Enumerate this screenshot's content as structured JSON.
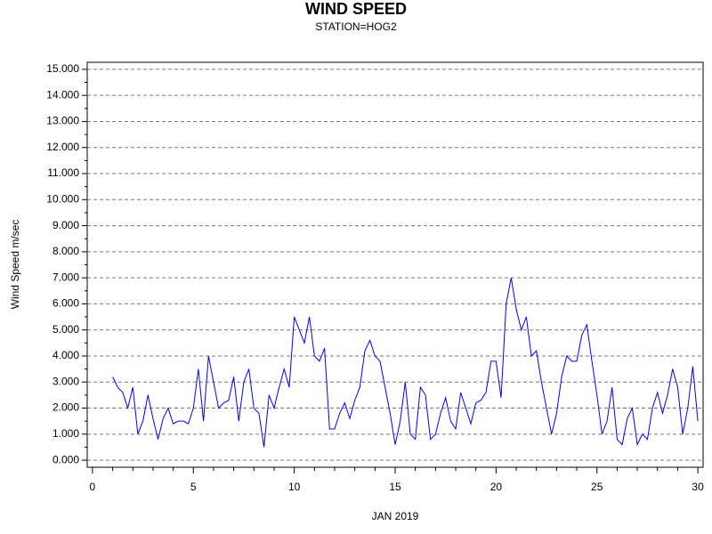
{
  "chart_data": {
    "type": "line",
    "title": "WIND SPEED",
    "subtitle": "STATION=HOG2",
    "x_label": "JAN 2019",
    "y_label": "Wind Speed m/sec",
    "xlim": [
      -0.26,
      30.26
    ],
    "xticks": [
      0,
      5,
      10,
      15,
      20,
      25,
      30
    ],
    "xminorticks": [
      1,
      2,
      3,
      4,
      6,
      7,
      8,
      9,
      11,
      12,
      13,
      14,
      16,
      17,
      18,
      19,
      21,
      22,
      23,
      24,
      26,
      27,
      28,
      29
    ],
    "ylim": [
      -0.27,
      15.27
    ],
    "yticks": [
      {
        "value": 0,
        "label": "0.000"
      },
      {
        "value": 1,
        "label": "1.000"
      },
      {
        "value": 2,
        "label": "2.000"
      },
      {
        "value": 3,
        "label": "3.000"
      },
      {
        "value": 4,
        "label": "4.000"
      },
      {
        "value": 5,
        "label": "5.000"
      },
      {
        "value": 6,
        "label": "6.000"
      },
      {
        "value": 7,
        "label": "7.000"
      },
      {
        "value": 8,
        "label": "8.000"
      },
      {
        "value": 9,
        "label": "9.000"
      },
      {
        "value": 10,
        "label": "10.000"
      },
      {
        "value": 11,
        "label": "11.000"
      },
      {
        "value": 12,
        "label": "12.000"
      },
      {
        "value": 13,
        "label": "13.000"
      },
      {
        "value": 14,
        "label": "14.000"
      },
      {
        "value": 15,
        "label": "15.000"
      }
    ],
    "yminorticks": [
      0.5,
      1.5,
      2.5,
      3.5,
      4.5,
      5.5,
      6.5,
      7.5,
      8.5,
      9.5,
      10.5,
      11.5,
      12.5,
      13.5,
      14.5
    ],
    "grid": true,
    "x": [
      1,
      1.25,
      1.5,
      1.75,
      2,
      2.25,
      2.5,
      2.75,
      3,
      3.25,
      3.5,
      3.75,
      4,
      4.25,
      4.5,
      4.75,
      5,
      5.25,
      5.5,
      5.75,
      6,
      6.25,
      6.5,
      6.75,
      7,
      7.25,
      7.5,
      7.75,
      8,
      8.25,
      8.5,
      8.75,
      9,
      9.25,
      9.5,
      9.75,
      10,
      10.25,
      10.5,
      10.75,
      11,
      11.25,
      11.5,
      11.75,
      12,
      12.25,
      12.5,
      12.75,
      13,
      13.25,
      13.5,
      13.75,
      14,
      14.25,
      14.5,
      14.75,
      15,
      15.25,
      15.5,
      15.75,
      16,
      16.25,
      16.5,
      16.75,
      17,
      17.25,
      17.5,
      17.75,
      18,
      18.25,
      18.5,
      18.75,
      19,
      19.25,
      19.5,
      19.75,
      20,
      20.25,
      20.5,
      20.75,
      21,
      21.25,
      21.5,
      21.75,
      22,
      22.25,
      22.5,
      22.75,
      23,
      23.25,
      23.5,
      23.75,
      24,
      24.25,
      24.5,
      24.75,
      25,
      25.25,
      25.5,
      25.75,
      26,
      26.25,
      26.5,
      26.75,
      27,
      27.25,
      27.5,
      27.75,
      28,
      28.25,
      28.5,
      28.75,
      29,
      29.25,
      29.5,
      29.75,
      30
    ],
    "series": [
      {
        "name": "Wind Speed",
        "color": "#0000ff",
        "values": [
          3.2,
          2.8,
          2.6,
          2.0,
          2.8,
          1.0,
          1.5,
          2.5,
          1.6,
          0.8,
          1.6,
          2.0,
          1.4,
          1.5,
          1.5,
          1.4,
          2.0,
          3.5,
          1.5,
          4.0,
          3.0,
          2.0,
          2.2,
          2.3,
          3.2,
          1.5,
          3.0,
          3.5,
          2.0,
          1.8,
          0.5,
          2.5,
          2.0,
          2.8,
          3.5,
          2.8,
          5.5,
          5.0,
          4.5,
          5.5,
          4.0,
          3.8,
          4.3,
          1.2,
          1.2,
          1.8,
          2.2,
          1.6,
          2.3,
          2.8,
          4.2,
          4.6,
          4.0,
          3.8,
          2.8,
          1.8,
          0.6,
          1.5,
          3.0,
          1.0,
          0.8,
          2.8,
          2.5,
          0.8,
          1.0,
          1.8,
          2.4,
          1.5,
          1.2,
          2.6,
          2.0,
          1.4,
          2.2,
          2.3,
          2.6,
          3.8,
          3.8,
          2.4,
          6.0,
          7.0,
          5.8,
          5.0,
          5.5,
          4.0,
          4.2,
          3.0,
          2.0,
          1.0,
          1.8,
          3.2,
          4.0,
          3.8,
          3.8,
          4.8,
          5.2,
          3.8,
          2.5,
          1.0,
          1.5,
          2.8,
          0.8,
          0.6,
          1.6,
          2.0,
          0.6,
          1.0,
          0.8,
          2.0,
          2.6,
          1.8,
          2.5,
          3.5,
          2.8,
          1.0,
          2.0,
          3.6,
          1.5
        ]
      }
    ]
  }
}
